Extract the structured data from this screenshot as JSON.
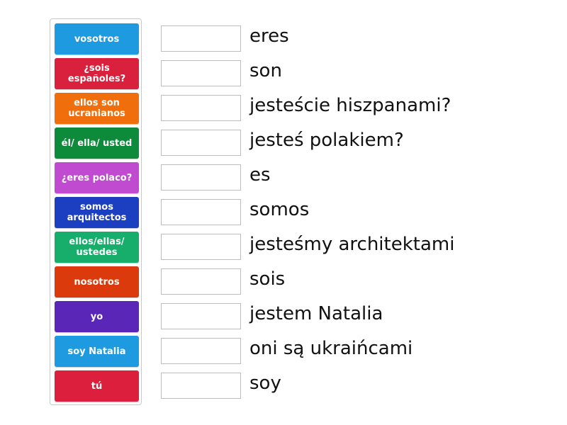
{
  "tiles": [
    {
      "label": "vosotros",
      "color": "#1e9ae0"
    },
    {
      "label": "¿sois españoles?",
      "color": "#d9203d"
    },
    {
      "label": "ellos son ucranianos",
      "color": "#f06f0c"
    },
    {
      "label": "él/ ella/ usted",
      "color": "#0e8a3b"
    },
    {
      "label": "¿eres polaco?",
      "color": "#c04bd0"
    },
    {
      "label": "somos arquitectos",
      "color": "#1b3fc0"
    },
    {
      "label": "ellos/ellas/ ustedes",
      "color": "#17ae6c"
    },
    {
      "label": "nosotros",
      "color": "#db3b0c"
    },
    {
      "label": "yo",
      "color": "#5a26b8"
    },
    {
      "label": "soy Natalia",
      "color": "#1e9ae0"
    },
    {
      "label": "tú",
      "color": "#dc1f3c"
    }
  ],
  "definitions": [
    "eres",
    "son",
    "jesteście hiszpanami?",
    "jesteś polakiem?",
    "es",
    "somos",
    "jesteśmy architektami",
    "sois",
    "jestem Natalia",
    "oni są ukraińcami",
    "soy"
  ]
}
